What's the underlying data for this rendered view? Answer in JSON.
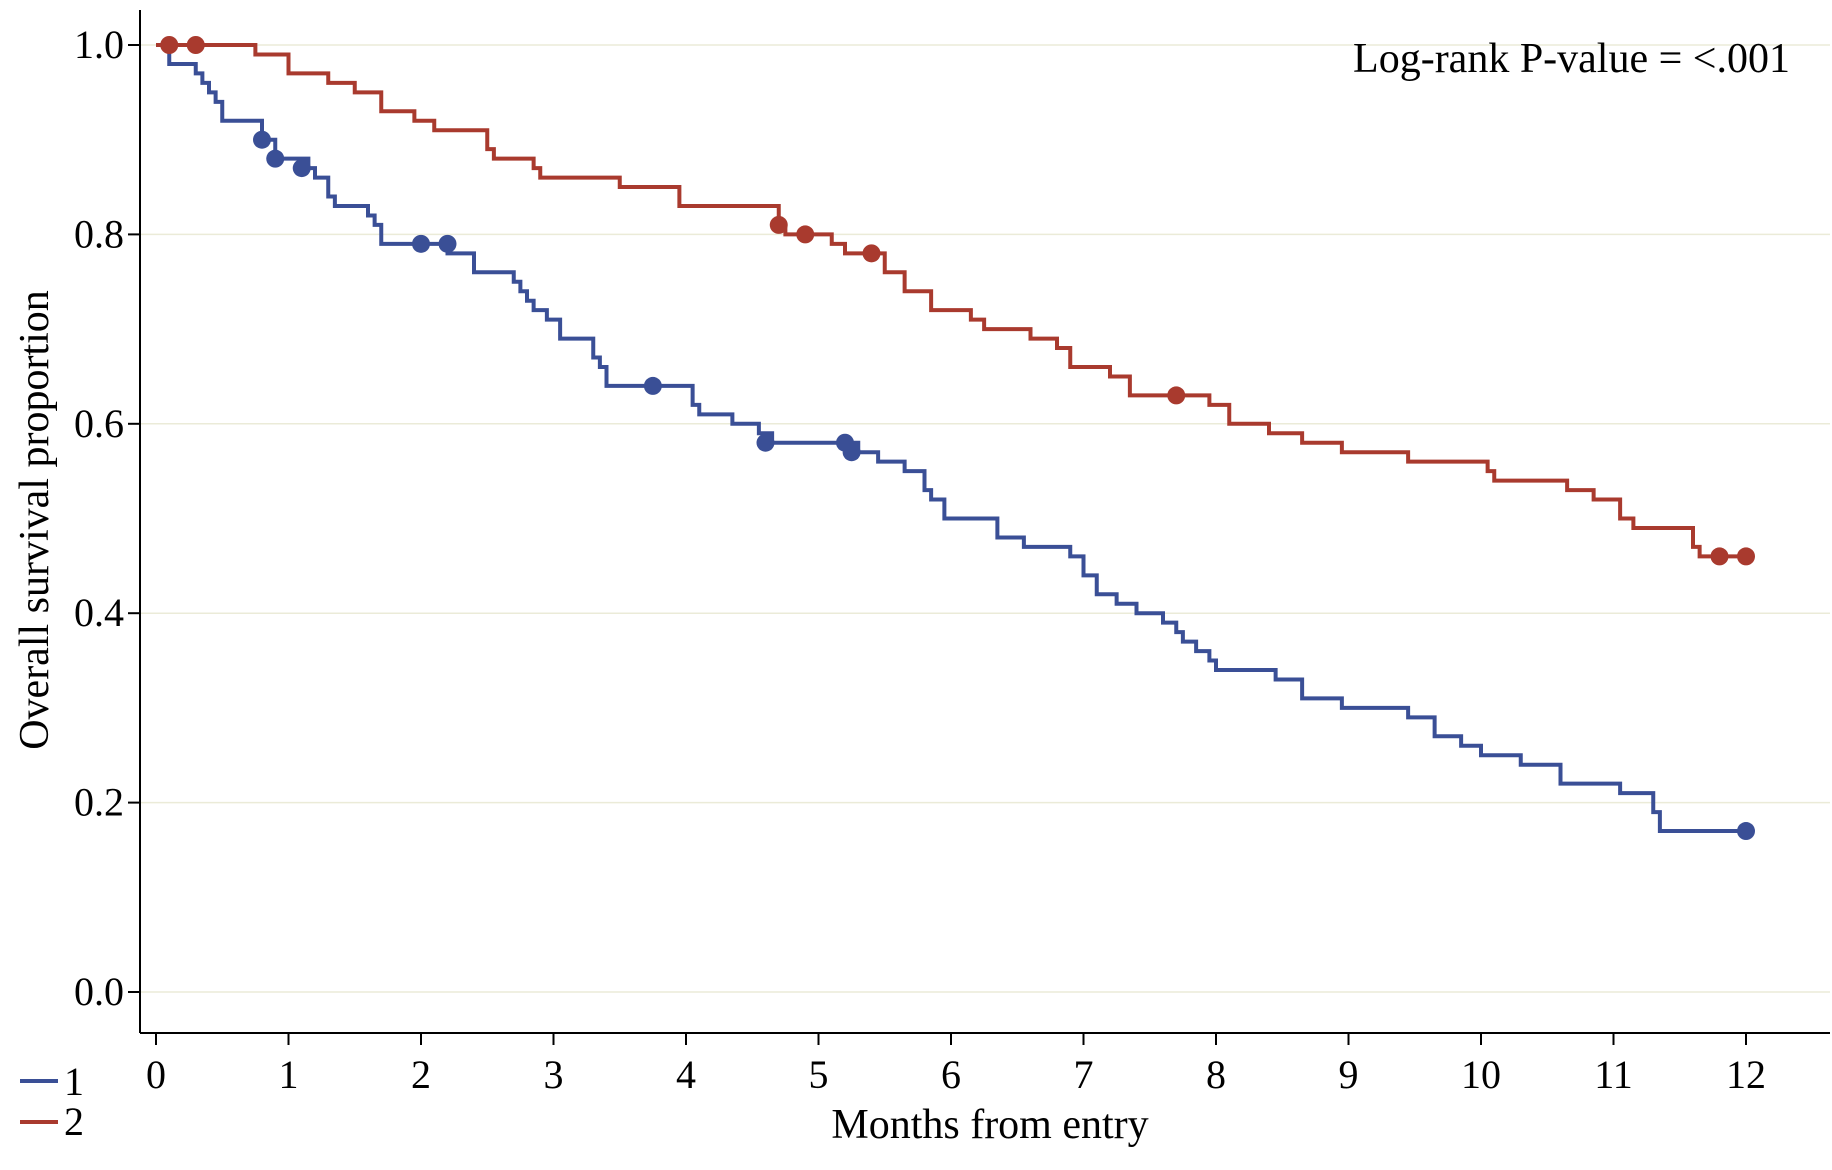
{
  "chart_data": {
    "type": "line",
    "subtype": "kaplan-meier step",
    "xlabel": "Months from entry",
    "ylabel": "Overall survival proportion",
    "annotation": "Log-rank P-value = <.001",
    "xlim": [
      0,
      12.4
    ],
    "ylim": [
      0,
      1.0
    ],
    "xticks": [
      0,
      1,
      2,
      3,
      4,
      5,
      6,
      7,
      8,
      9,
      10,
      11,
      12
    ],
    "yticks": [
      "0.0",
      "0.2",
      "0.4",
      "0.6",
      "0.8",
      "1.0"
    ],
    "grid": "horizontal",
    "legend_position": "bottom-left",
    "series": [
      {
        "name": "1",
        "color": "#3a4f96",
        "steps": [
          [
            0,
            1.0
          ],
          [
            0.1,
            0.98
          ],
          [
            0.3,
            0.97
          ],
          [
            0.35,
            0.96
          ],
          [
            0.4,
            0.95
          ],
          [
            0.45,
            0.94
          ],
          [
            0.5,
            0.92
          ],
          [
            0.8,
            0.9
          ],
          [
            0.9,
            0.88
          ],
          [
            1.15,
            0.87
          ],
          [
            1.2,
            0.86
          ],
          [
            1.3,
            0.84
          ],
          [
            1.35,
            0.83
          ],
          [
            1.6,
            0.82
          ],
          [
            1.65,
            0.81
          ],
          [
            1.7,
            0.79
          ],
          [
            2.2,
            0.78
          ],
          [
            2.4,
            0.76
          ],
          [
            2.7,
            0.75
          ],
          [
            2.75,
            0.74
          ],
          [
            2.8,
            0.73
          ],
          [
            2.85,
            0.72
          ],
          [
            2.95,
            0.71
          ],
          [
            3.05,
            0.69
          ],
          [
            3.3,
            0.67
          ],
          [
            3.35,
            0.66
          ],
          [
            3.4,
            0.64
          ],
          [
            4.05,
            0.62
          ],
          [
            4.1,
            0.61
          ],
          [
            4.35,
            0.6
          ],
          [
            4.55,
            0.59
          ],
          [
            4.65,
            0.58
          ],
          [
            5.3,
            0.57
          ],
          [
            5.45,
            0.56
          ],
          [
            5.65,
            0.55
          ],
          [
            5.8,
            0.53
          ],
          [
            5.85,
            0.52
          ],
          [
            5.95,
            0.5
          ],
          [
            6.35,
            0.48
          ],
          [
            6.55,
            0.47
          ],
          [
            6.9,
            0.46
          ],
          [
            7.0,
            0.44
          ],
          [
            7.1,
            0.42
          ],
          [
            7.25,
            0.41
          ],
          [
            7.4,
            0.4
          ],
          [
            7.6,
            0.39
          ],
          [
            7.7,
            0.38
          ],
          [
            7.75,
            0.37
          ],
          [
            7.85,
            0.36
          ],
          [
            7.95,
            0.35
          ],
          [
            8.0,
            0.34
          ],
          [
            8.45,
            0.33
          ],
          [
            8.65,
            0.31
          ],
          [
            8.95,
            0.3
          ],
          [
            9.45,
            0.29
          ],
          [
            9.65,
            0.27
          ],
          [
            9.85,
            0.26
          ],
          [
            10.0,
            0.25
          ],
          [
            10.3,
            0.24
          ],
          [
            10.6,
            0.22
          ],
          [
            11.05,
            0.21
          ],
          [
            11.3,
            0.19
          ],
          [
            11.35,
            0.17
          ],
          [
            12.0,
            0.17
          ]
        ],
        "censored": [
          [
            0.8,
            0.9
          ],
          [
            0.9,
            0.88
          ],
          [
            1.1,
            0.87
          ],
          [
            2.0,
            0.79
          ],
          [
            2.2,
            0.79
          ],
          [
            3.75,
            0.64
          ],
          [
            4.6,
            0.58
          ],
          [
            5.2,
            0.58
          ],
          [
            5.25,
            0.57
          ],
          [
            12.0,
            0.17
          ]
        ]
      },
      {
        "name": "2",
        "color": "#a93a2e",
        "steps": [
          [
            0,
            1.0
          ],
          [
            0.75,
            0.99
          ],
          [
            1.0,
            0.97
          ],
          [
            1.3,
            0.96
          ],
          [
            1.5,
            0.95
          ],
          [
            1.7,
            0.93
          ],
          [
            1.95,
            0.92
          ],
          [
            2.1,
            0.91
          ],
          [
            2.5,
            0.89
          ],
          [
            2.55,
            0.88
          ],
          [
            2.85,
            0.87
          ],
          [
            2.9,
            0.86
          ],
          [
            3.5,
            0.85
          ],
          [
            3.95,
            0.83
          ],
          [
            4.7,
            0.81
          ],
          [
            4.75,
            0.8
          ],
          [
            5.1,
            0.79
          ],
          [
            5.2,
            0.78
          ],
          [
            5.5,
            0.76
          ],
          [
            5.65,
            0.74
          ],
          [
            5.85,
            0.72
          ],
          [
            6.15,
            0.71
          ],
          [
            6.25,
            0.7
          ],
          [
            6.6,
            0.69
          ],
          [
            6.8,
            0.68
          ],
          [
            6.9,
            0.66
          ],
          [
            7.2,
            0.65
          ],
          [
            7.35,
            0.63
          ],
          [
            7.95,
            0.62
          ],
          [
            8.1,
            0.6
          ],
          [
            8.4,
            0.59
          ],
          [
            8.65,
            0.58
          ],
          [
            8.95,
            0.57
          ],
          [
            9.45,
            0.56
          ],
          [
            10.05,
            0.55
          ],
          [
            10.1,
            0.54
          ],
          [
            10.65,
            0.53
          ],
          [
            10.85,
            0.52
          ],
          [
            11.05,
            0.5
          ],
          [
            11.15,
            0.49
          ],
          [
            11.6,
            0.47
          ],
          [
            11.65,
            0.46
          ],
          [
            12.0,
            0.46
          ]
        ],
        "censored": [
          [
            0.1,
            1.0
          ],
          [
            0.3,
            1.0
          ],
          [
            4.7,
            0.81
          ],
          [
            4.9,
            0.8
          ],
          [
            5.4,
            0.78
          ],
          [
            7.7,
            0.63
          ],
          [
            11.8,
            0.46
          ],
          [
            12.0,
            0.46
          ]
        ]
      }
    ]
  }
}
